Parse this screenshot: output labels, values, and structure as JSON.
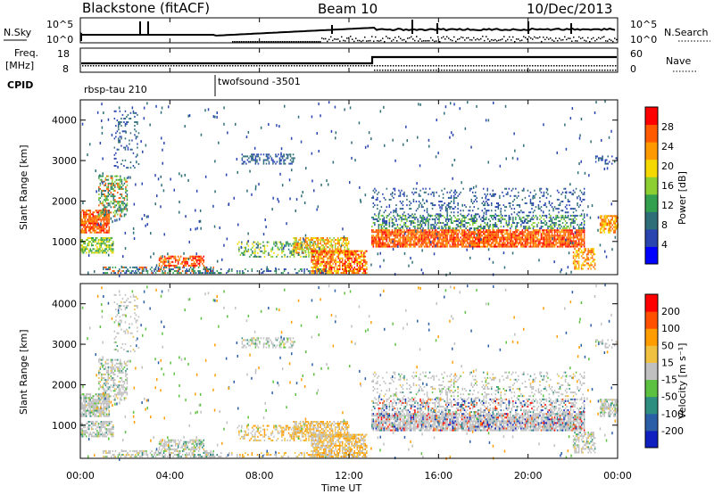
{
  "header": {
    "title": "Blackstone (fitACF)",
    "beam": "Beam 10",
    "date": "10/Dec/2013"
  },
  "top_panels": {
    "nsky_label": "N.Sky",
    "nsky_ticks": [
      "10^5",
      "10^0"
    ],
    "nsearch_label": "N.Search",
    "nsearch_ticks": [
      "10^5",
      "10^0"
    ],
    "freq_label": "Freq.",
    "freq_unit": "[MHz]",
    "freq_ticks": [
      "18",
      "8"
    ],
    "nave_label": "Nave",
    "nave_ticks": [
      "60",
      "0"
    ],
    "cpid_label": "CPID",
    "cpid_segments": [
      {
        "name": "rbsp-tau 210",
        "start_hour": 0
      },
      {
        "name": "twofsound -3501",
        "start_hour": 6
      }
    ]
  },
  "chart_data": [
    {
      "type": "heatmap",
      "panel": "power",
      "ylabel": "Slant Range [km]",
      "xlabel": "",
      "yticks": [
        "4000",
        "3000",
        "2000",
        "1000"
      ],
      "ylim": [
        180,
        4500
      ],
      "xlim": [
        0,
        24
      ],
      "colorbar": {
        "label": "Power [dB]",
        "ticks": [
          "28",
          "24",
          "20",
          "16",
          "12",
          "8",
          "4"
        ],
        "colors": [
          "#0000ff",
          "#2845b0",
          "#2e6e78",
          "#33a050",
          "#8ccf30",
          "#f5d800",
          "#ff9900",
          "#ff5a00",
          "#ff0000"
        ]
      }
    },
    {
      "type": "heatmap",
      "panel": "velocity",
      "ylabel": "Slant Range [km]",
      "xlabel": "Time UT",
      "yticks": [
        "4000",
        "3000",
        "2000",
        "1000"
      ],
      "ylim": [
        180,
        4500
      ],
      "xlim": [
        0,
        24
      ],
      "colorbar": {
        "label": "Velocity [m s⁻¹]",
        "ticks": [
          "200",
          "100",
          "50",
          "15",
          "-15",
          "-50",
          "-100",
          "-200"
        ],
        "colors": [
          "#1020c0",
          "#2a5fa8",
          "#2e8f80",
          "#5cc040",
          "#c0c0c0",
          "#f0c040",
          "#ff9c00",
          "#ff5000",
          "#ff0000"
        ]
      }
    }
  ],
  "time_axis": {
    "ticks": [
      "00:00",
      "04:00",
      "08:00",
      "12:00",
      "16:00",
      "20:00",
      "00:00"
    ],
    "label": "Time UT"
  }
}
